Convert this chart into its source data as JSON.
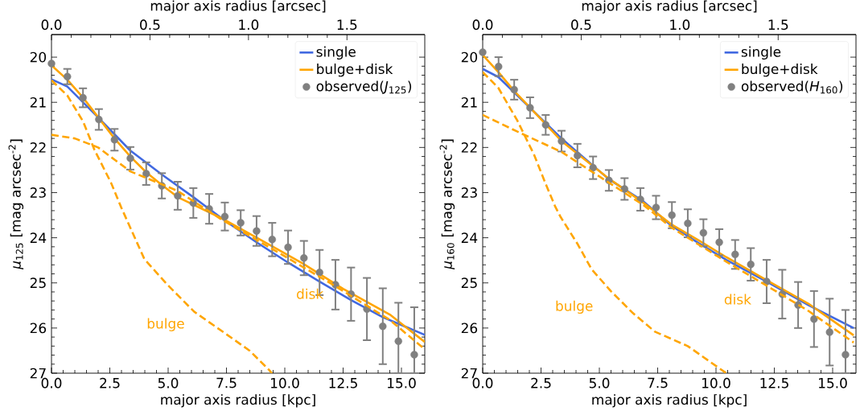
{
  "chart_data": [
    {
      "type": "line",
      "xlabel": "major axis radius [kpc]",
      "x2label": "major axis radius [arcsec]",
      "ylabel": "*μ*$_{125}$ [mag arcsec$^{-2}$]",
      "xlim": [
        0,
        16
      ],
      "ylim": [
        27,
        19.5
      ],
      "x2lim": [
        0,
        1.895
      ],
      "xticks": [
        {
          "value": 0,
          "label": "0.0"
        },
        {
          "value": 2.5,
          "label": "2.5"
        },
        {
          "value": 5,
          "label": "5.0"
        },
        {
          "value": 7.5,
          "label": "7.5"
        },
        {
          "value": 10,
          "label": "10.0"
        },
        {
          "value": 12.5,
          "label": "12.5"
        },
        {
          "value": 15,
          "label": "15.0"
        }
      ],
      "x2ticks": [
        {
          "value": 0,
          "label": "0.0"
        },
        {
          "value": 0.5,
          "label": "0.5"
        },
        {
          "value": 1,
          "label": "1.0"
        },
        {
          "value": 1.5,
          "label": "1.5"
        }
      ],
      "yticks": [
        20,
        21,
        22,
        23,
        24,
        25,
        26,
        27
      ],
      "legend": "top right",
      "series": [
        {
          "name": "single",
          "color": "#4169e1",
          "x": [
            0,
            0.68,
            2.03,
            3.38,
            4.73,
            6.08,
            7.43,
            8.79,
            10.14,
            11.49,
            12.84,
            14.2,
            16
          ],
          "values": [
            20.49,
            20.65,
            21.35,
            22.07,
            22.6,
            23.1,
            23.62,
            24.1,
            24.55,
            24.97,
            25.38,
            25.76,
            26.15
          ]
        },
        {
          "name": "bulge+disk",
          "color": "#ffa500",
          "x": [
            0,
            0.68,
            1.36,
            2.03,
            2.7,
            3.38,
            4.06,
            4.73,
            5.41,
            7.3,
            9.7,
            10.8,
            12.5,
            14.5,
            16
          ],
          "values": [
            20.18,
            20.5,
            20.9,
            21.35,
            21.8,
            22.2,
            22.55,
            22.83,
            23.1,
            23.57,
            24.26,
            24.58,
            25.13,
            25.7,
            26.31
          ]
        },
        {
          "name": "observed(*J*$_{125}$)",
          "type": "scatter",
          "marker": "circle",
          "color": "#808080",
          "x": [
            0,
            0.68,
            1.35,
            2.03,
            2.7,
            3.38,
            4.06,
            4.73,
            5.41,
            6.08,
            6.76,
            7.43,
            8.11,
            8.79,
            9.46,
            10.14,
            10.82,
            11.49,
            12.17,
            12.84,
            13.52,
            14.2,
            14.87,
            15.55
          ],
          "values": [
            20.14,
            20.43,
            20.9,
            21.38,
            21.83,
            22.24,
            22.58,
            22.85,
            23.07,
            23.23,
            23.36,
            23.53,
            23.67,
            23.85,
            24.04,
            24.21,
            24.45,
            24.77,
            25.04,
            25.25,
            25.58,
            25.96,
            26.29,
            26.59
          ],
          "errors": [
            null,
            0.17,
            0.21,
            0.23,
            0.24,
            0.25,
            0.25,
            0.28,
            0.31,
            0.33,
            0.33,
            0.31,
            0.28,
            0.33,
            0.37,
            0.37,
            0.38,
            0.5,
            0.55,
            0.59,
            0.69,
            0.84,
            [
              25.44,
              27
            ],
            [
              25.54,
              27
            ]
          ]
        },
        {
          "name": "bulge",
          "color": "#ffa500",
          "line_style": "dashed",
          "x": [
            0,
            0.68,
            1.36,
            1.84,
            2.55,
            2.99,
            3.98,
            4.93,
            6.12,
            7.31,
            8.49,
            9.33,
            9.45
          ],
          "values": [
            20.51,
            20.85,
            21.43,
            22.05,
            22.78,
            23.33,
            24.47,
            25.02,
            25.64,
            26.07,
            26.5,
            26.93,
            27
          ]
        },
        {
          "name": "disk",
          "color": "#ffa500",
          "line_style": "dashed",
          "x": [
            0,
            1,
            2,
            3.38,
            5.4,
            7.3,
            9.7,
            12,
            14.5,
            16
          ],
          "values": [
            21.72,
            21.8,
            22.0,
            22.53,
            22.96,
            23.6,
            24.32,
            25.02,
            25.82,
            26.47
          ]
        }
      ]
    },
    {
      "type": "line",
      "xlabel": "major axis radius [kpc]",
      "x2label": "major axis radius [arcsec]",
      "ylabel": "*μ*$_{160}$ [mag arcsec$^{-2}$]",
      "xlim": [
        0,
        16
      ],
      "ylim": [
        27,
        19.5
      ],
      "x2lim": [
        0,
        1.895
      ],
      "xticks": [
        {
          "value": 0,
          "label": "0.0"
        },
        {
          "value": 2.5,
          "label": "2.5"
        },
        {
          "value": 5,
          "label": "5.0"
        },
        {
          "value": 7.5,
          "label": "7.5"
        },
        {
          "value": 10,
          "label": "10.0"
        },
        {
          "value": 12.5,
          "label": "12.5"
        },
        {
          "value": 15,
          "label": "15.0"
        }
      ],
      "x2ticks": [
        {
          "value": 0,
          "label": "0.0"
        },
        {
          "value": 0.5,
          "label": "0.5"
        },
        {
          "value": 1,
          "label": "1.0"
        },
        {
          "value": 1.5,
          "label": "1.5"
        }
      ],
      "yticks": [
        20,
        21,
        22,
        23,
        24,
        25,
        26,
        27
      ],
      "legend": "top right",
      "series": [
        {
          "name": "single",
          "color": "#4169e1",
          "x": [
            0,
            0.67,
            3.38,
            5.4,
            6.9,
            8.08,
            9.26,
            10.44,
            12.2,
            13.96,
            15.9
          ],
          "values": [
            20.26,
            20.44,
            21.8,
            22.7,
            23.2,
            23.73,
            24.12,
            24.49,
            24.98,
            25.49,
            26.0
          ]
        },
        {
          "name": "bulge+disk",
          "color": "#ffa500",
          "x": [
            0,
            0.67,
            1.35,
            2.0,
            3.38,
            5.38,
            6.9,
            8.08,
            9.26,
            10.44,
            12.2,
            13.96,
            15.9
          ],
          "values": [
            19.95,
            20.33,
            20.75,
            21.1,
            21.86,
            22.68,
            23.23,
            23.7,
            24.06,
            24.43,
            24.95,
            25.46,
            26.16
          ]
        },
        {
          "name": "observed(*H*$_{160}$)",
          "type": "scatter",
          "marker": "circle",
          "color": "#808080",
          "x": [
            0,
            0.68,
            1.35,
            2.03,
            2.7,
            3.38,
            4.06,
            4.73,
            5.41,
            6.08,
            6.76,
            7.43,
            8.11,
            8.79,
            9.46,
            10.14,
            10.82,
            11.49,
            12.17,
            12.84,
            13.52,
            14.2,
            14.87,
            15.55
          ],
          "values": [
            19.89,
            20.21,
            20.72,
            21.12,
            21.5,
            21.86,
            22.18,
            22.45,
            22.73,
            22.92,
            23.15,
            23.33,
            23.5,
            23.68,
            23.89,
            24.1,
            24.37,
            24.59,
            24.97,
            25.25,
            25.49,
            25.8,
            26.09,
            26.59
          ],
          "errors": [
            null,
            0.21,
            0.22,
            0.23,
            0.22,
            0.23,
            0.26,
            0.25,
            0.23,
            0.24,
            0.25,
            0.26,
            0.29,
            0.31,
            0.3,
            0.29,
            0.32,
            0.36,
            0.48,
            0.54,
            0.51,
            0.62,
            0.74,
            [
              25.6,
              27
            ]
          ]
        },
        {
          "name": "bulge",
          "color": "#ffa500",
          "line_style": "dashed",
          "x": [
            0,
            0.67,
            1.49,
            2.2,
            2.67,
            3.1,
            3.34,
            4.08,
            4.67,
            5.49,
            6.44,
            7.38,
            8.79,
            10.44
          ],
          "values": [
            20.33,
            20.68,
            21.41,
            22.16,
            22.77,
            23.3,
            23.54,
            24.15,
            24.7,
            25.18,
            25.67,
            26.08,
            26.4,
            27.0
          ]
        },
        {
          "name": "disk",
          "color": "#ffa500",
          "line_style": "dashed",
          "x": [
            0,
            1.49,
            3.38,
            5.38,
            6.9,
            8.08,
            9.26,
            10.44,
            12.2,
            13.96,
            15.9
          ],
          "values": [
            21.28,
            21.65,
            22.1,
            22.77,
            23.28,
            23.77,
            24.15,
            24.53,
            25.07,
            25.62,
            26.32
          ]
        }
      ]
    }
  ]
}
